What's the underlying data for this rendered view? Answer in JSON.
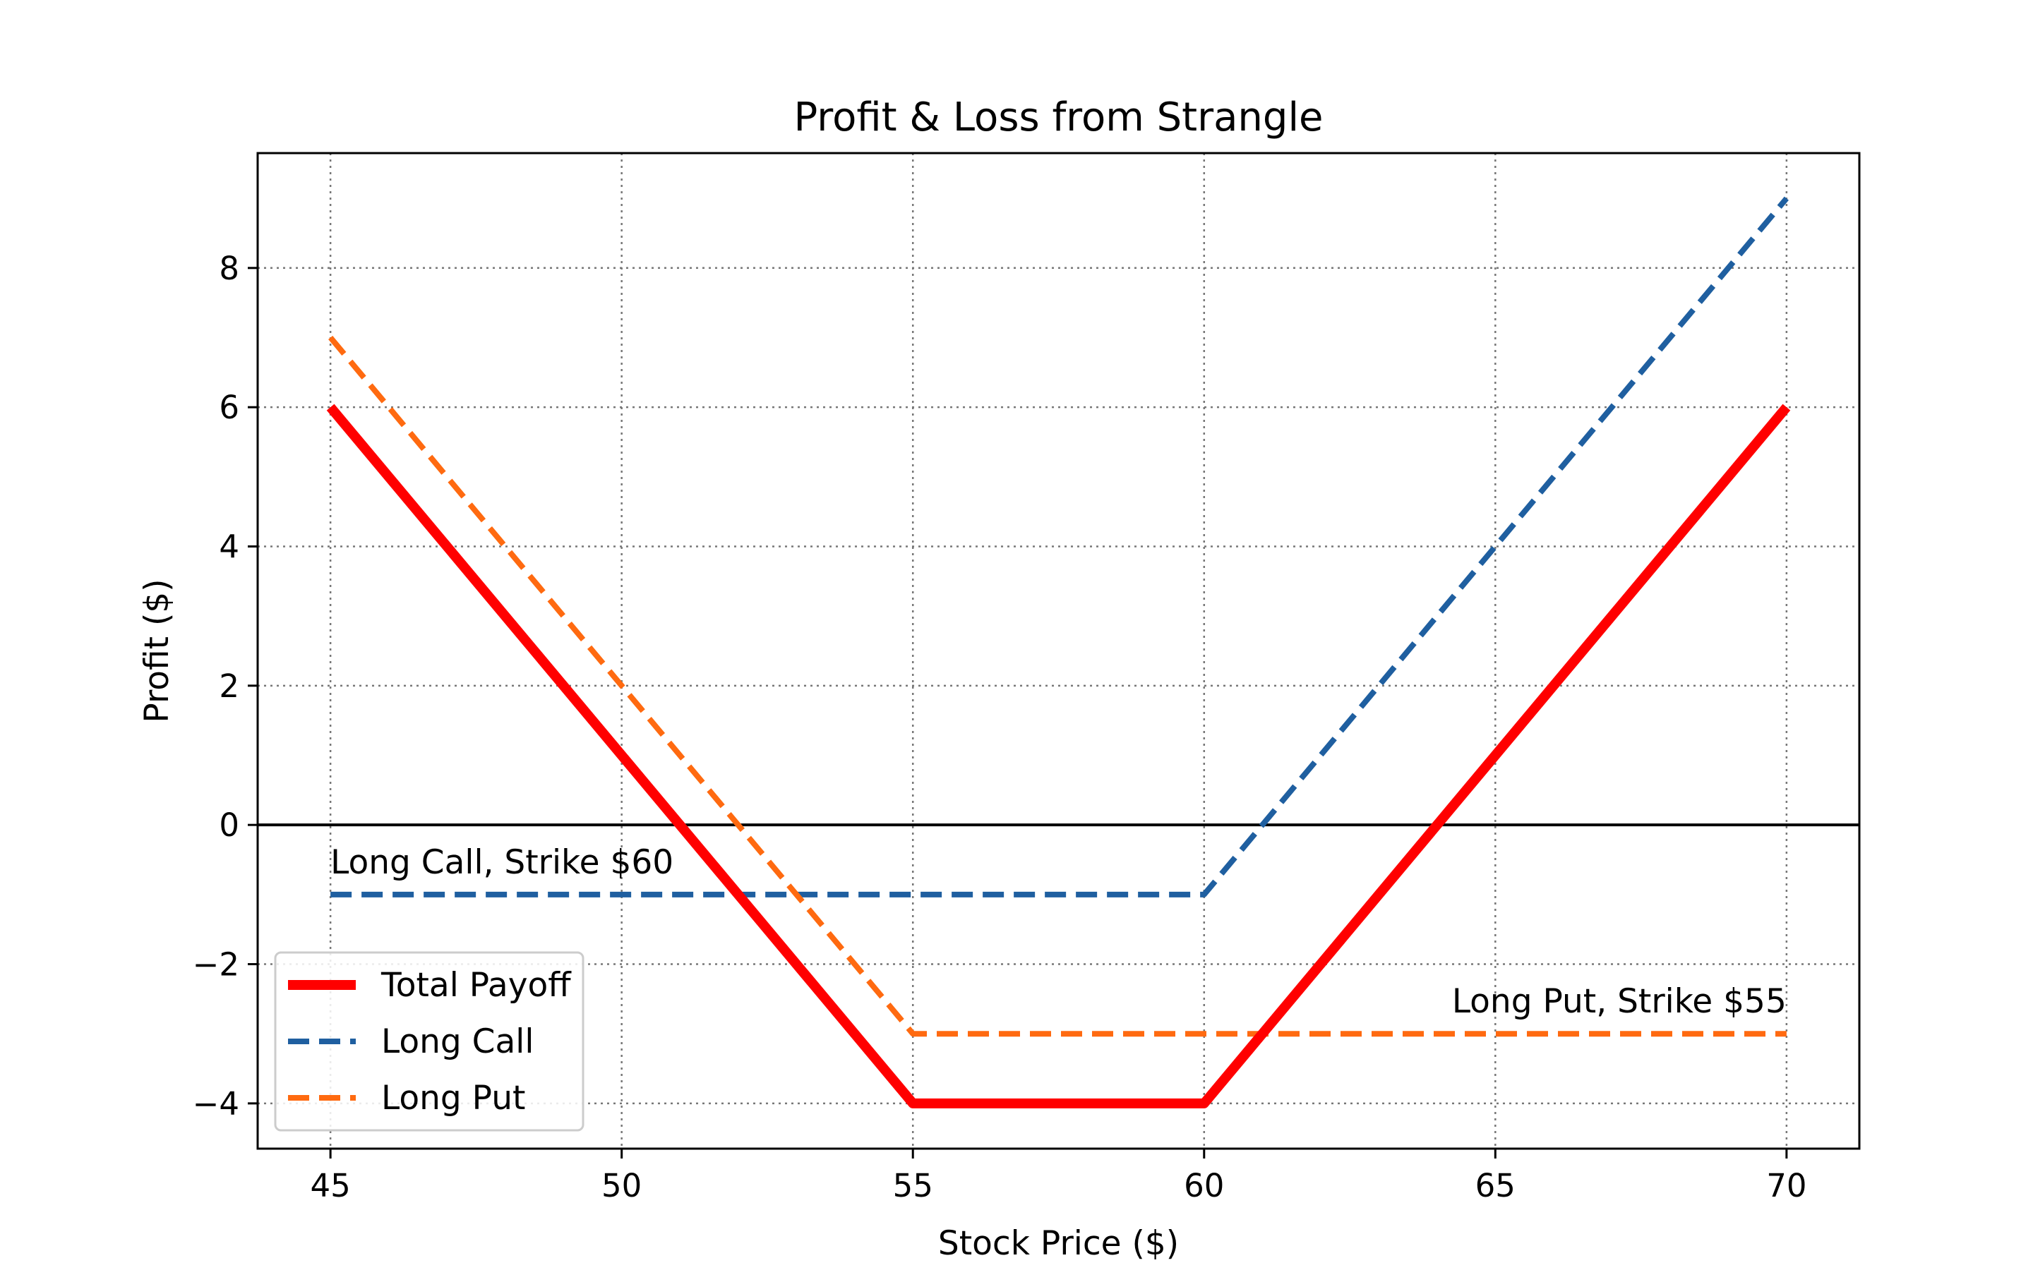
{
  "chart_data": {
    "type": "line",
    "title": "Profit & Loss from Strangle",
    "xlabel": "Stock Price ($)",
    "ylabel": "Profit ($)",
    "xlim": [
      43.75,
      71.25
    ],
    "ylim": [
      -4.65,
      9.65
    ],
    "xticks": [
      45,
      50,
      55,
      60,
      65,
      70
    ],
    "yticks": [
      -4,
      -2,
      0,
      2,
      4,
      6,
      8
    ],
    "ytick_labels": [
      "−4",
      "−2",
      "0",
      "2",
      "4",
      "6",
      "8"
    ],
    "grid": true,
    "grid_style": "dotted",
    "legend_position": "lower-left",
    "zero_line": true,
    "series": [
      {
        "name": "Total Payoff",
        "color": "#ff0000",
        "style": "solid",
        "x": [
          45,
          55,
          60,
          70
        ],
        "y": [
          6,
          -4,
          -4,
          6
        ]
      },
      {
        "name": "Long Call",
        "color": "#1f5fa0",
        "style": "dashed",
        "x": [
          45,
          60,
          70
        ],
        "y": [
          -1,
          -1,
          9
        ]
      },
      {
        "name": "Long Put",
        "color": "#ff6a10",
        "style": "dashed",
        "x": [
          45,
          55,
          70
        ],
        "y": [
          7,
          -3,
          -3
        ]
      }
    ],
    "annotations": [
      {
        "text": "Long Call, Strike $60",
        "x": 45,
        "y": -1,
        "anchor": "start"
      },
      {
        "text": "Long Put, Strike $55",
        "x": 70,
        "y": -3,
        "anchor": "end"
      }
    ]
  }
}
